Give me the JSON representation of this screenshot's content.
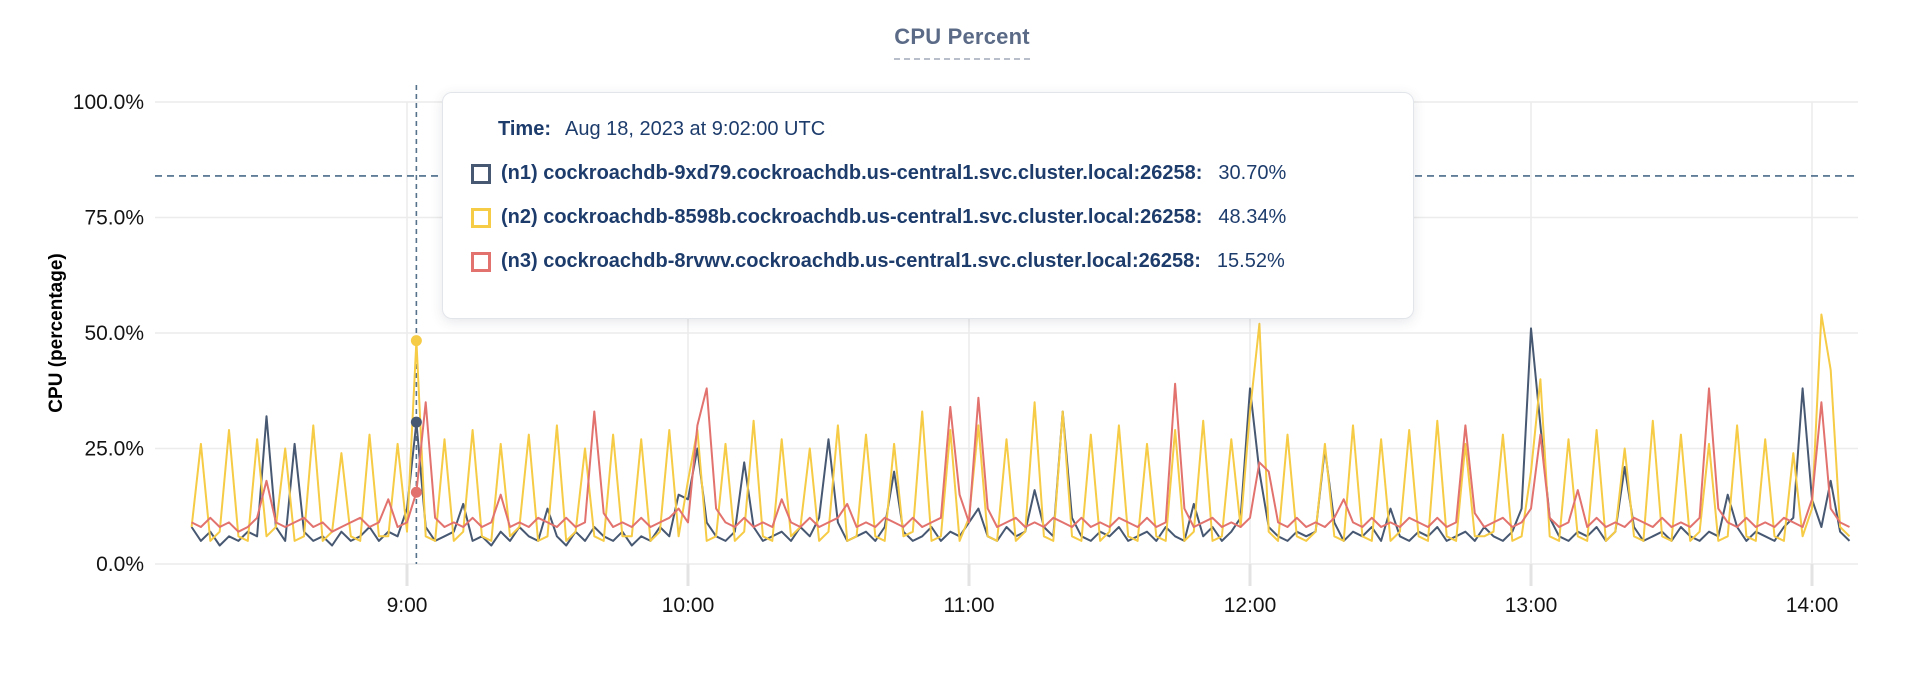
{
  "title": "CPU Percent",
  "tooltip": {
    "time_label": "Time:",
    "time_value": "Aug 18, 2023 at 9:02:00 UTC",
    "series": [
      {
        "label": "(n1) cockroachdb-9xd79.cockroachdb.us-central1.svc.cluster.local:26258:",
        "value": "30.70%"
      },
      {
        "label": "(n2) cockroachdb-8598b.cockroachdb.us-central1.svc.cluster.local:26258:",
        "value": "48.34%"
      },
      {
        "label": "(n3) cockroachdb-8rvwv.cockroachdb.us-central1.svc.cluster.local:26258:",
        "value": "15.52%"
      }
    ]
  },
  "colors": {
    "series_n1": "#475872",
    "series_n2": "#f6cb45",
    "series_n3": "#e2726e",
    "gridline": "#ececec",
    "threshold_dash": "#4a6b89",
    "hover_dash": "#56718a",
    "tooltip_text": "#1d3c6c",
    "axis_text": "#141414",
    "title_text": "#5b6b87"
  },
  "chart_data": {
    "type": "line",
    "title": "CPU Percent",
    "xlabel": "",
    "ylabel": "CPU (percentage)",
    "ylim": [
      0,
      100
    ],
    "grid": true,
    "legend_position": "tooltip-overlay",
    "y_ticks": [
      {
        "value": 0,
        "label": "0.0%"
      },
      {
        "value": 25,
        "label": "25.0%"
      },
      {
        "value": 50,
        "label": "50.0%"
      },
      {
        "value": 75,
        "label": "75.0%"
      },
      {
        "value": 100,
        "label": "100.0%"
      }
    ],
    "x_ticks": [
      {
        "minutes": 540,
        "label": "9:00"
      },
      {
        "minutes": 600,
        "label": "10:00"
      },
      {
        "minutes": 660,
        "label": "11:00"
      },
      {
        "minutes": 720,
        "label": "12:00"
      },
      {
        "minutes": 780,
        "label": "13:00"
      },
      {
        "minutes": 840,
        "label": "14:00"
      }
    ],
    "x_domain_minutes": [
      486,
      849
    ],
    "sample_start_minutes": 494,
    "sample_step_minutes": 2,
    "threshold_percent": 84,
    "hover": {
      "minutes": 542,
      "time": "Aug 18, 2023 at 9:02:00 UTC",
      "values": [
        30.7,
        48.34,
        15.52
      ]
    },
    "series": [
      {
        "id": "n1",
        "name": "cockroachdb-9xd79.cockroachdb.us-central1.svc.cluster.local:26258",
        "color": "#475872",
        "values": [
          8,
          5,
          7,
          4,
          6,
          5,
          7,
          6,
          32,
          8,
          5,
          26,
          7,
          5,
          6,
          4,
          7,
          5,
          6,
          8,
          5,
          7,
          6,
          12,
          30.7,
          8,
          5,
          6,
          7,
          13,
          5,
          6,
          4,
          7,
          5,
          8,
          6,
          5,
          12,
          6,
          4,
          7,
          5,
          8,
          6,
          5,
          7,
          4,
          6,
          5,
          8,
          6,
          15,
          14,
          25,
          9,
          6,
          5,
          7,
          22,
          8,
          5,
          6,
          7,
          5,
          8,
          6,
          10,
          27,
          9,
          5,
          6,
          7,
          5,
          8,
          20,
          7,
          5,
          6,
          8,
          5,
          7,
          6,
          9,
          12,
          6,
          5,
          8,
          6,
          7,
          16,
          8,
          6,
          33,
          10,
          6,
          5,
          7,
          6,
          8,
          5,
          6,
          7,
          5,
          8,
          6,
          5,
          13,
          6,
          8,
          5,
          7,
          10,
          38,
          20,
          8,
          6,
          5,
          7,
          6,
          7,
          25,
          9,
          5,
          7,
          6,
          8,
          5,
          12,
          6,
          5,
          7,
          6,
          8,
          5,
          6,
          7,
          5,
          8,
          6,
          5,
          7,
          12,
          51,
          30,
          10,
          6,
          5,
          7,
          6,
          8,
          5,
          7,
          21,
          8,
          5,
          6,
          7,
          5,
          8,
          6,
          5,
          7,
          6,
          15,
          8,
          5,
          7,
          6,
          5,
          8,
          10,
          38,
          14,
          8,
          18,
          7,
          5
        ]
      },
      {
        "id": "n2",
        "name": "cockroachdb-8598b.cockroachdb.us-central1.svc.cluster.local:26258",
        "color": "#f6cb45",
        "values": [
          8,
          26,
          5,
          7,
          29,
          6,
          5,
          27,
          6,
          8,
          25,
          5,
          6,
          30,
          5,
          7,
          24,
          6,
          5,
          28,
          6,
          6,
          26,
          7,
          48.34,
          6,
          5,
          27,
          5,
          7,
          29,
          6,
          5,
          26,
          6,
          8,
          28,
          5,
          6,
          30,
          5,
          7,
          25,
          6,
          5,
          28,
          6,
          6,
          27,
          5,
          7,
          29,
          6,
          18,
          29,
          5,
          6,
          26,
          5,
          7,
          31,
          6,
          5,
          27,
          6,
          8,
          25,
          5,
          7,
          30,
          5,
          6,
          28,
          6,
          5,
          26,
          6,
          7,
          33,
          5,
          6,
          29,
          5,
          10,
          30,
          6,
          5,
          27,
          5,
          7,
          35,
          6,
          5,
          33,
          6,
          5,
          28,
          5,
          7,
          30,
          6,
          5,
          26,
          6,
          5,
          29,
          5,
          7,
          31,
          5,
          6,
          27,
          8,
          33,
          52,
          7,
          5,
          28,
          6,
          5,
          7,
          26,
          6,
          5,
          30,
          6,
          5,
          27,
          5,
          7,
          29,
          6,
          5,
          31,
          6,
          5,
          26,
          6,
          6,
          7,
          28,
          5,
          6,
          20,
          40,
          6,
          5,
          27,
          6,
          5,
          29,
          5,
          7,
          25,
          6,
          5,
          31,
          6,
          5,
          28,
          5,
          7,
          26,
          5,
          6,
          30,
          6,
          5,
          27,
          6,
          5,
          24,
          6,
          12,
          54,
          42,
          8,
          6
        ]
      },
      {
        "id": "n3",
        "name": "cockroachdb-8rvwv.cockroachdb.us-central1.svc.cluster.local:26258",
        "color": "#e2726e",
        "values": [
          9,
          8,
          10,
          8,
          9,
          7,
          8,
          10,
          18,
          9,
          8,
          9,
          10,
          8,
          9,
          7,
          8,
          9,
          10,
          8,
          9,
          14,
          8,
          9,
          15.52,
          35,
          10,
          8,
          9,
          8,
          10,
          8,
          9,
          15,
          8,
          9,
          8,
          10,
          9,
          8,
          10,
          8,
          9,
          33,
          11,
          8,
          9,
          8,
          10,
          8,
          9,
          10,
          12,
          9,
          30,
          38,
          12,
          9,
          8,
          10,
          8,
          9,
          8,
          14,
          9,
          8,
          10,
          8,
          9,
          10,
          13,
          8,
          9,
          8,
          10,
          9,
          8,
          10,
          8,
          9,
          10,
          34,
          15,
          9,
          36,
          12,
          8,
          9,
          10,
          8,
          9,
          8,
          10,
          9,
          8,
          10,
          8,
          9,
          8,
          10,
          9,
          8,
          10,
          8,
          9,
          39,
          12,
          8,
          9,
          10,
          8,
          9,
          8,
          10,
          22,
          20,
          9,
          8,
          10,
          8,
          9,
          8,
          10,
          14,
          9,
          8,
          10,
          8,
          9,
          8,
          10,
          9,
          8,
          10,
          8,
          9,
          30,
          11,
          8,
          9,
          10,
          8,
          9,
          12,
          28,
          10,
          8,
          9,
          16,
          8,
          10,
          8,
          9,
          8,
          10,
          9,
          8,
          10,
          8,
          9,
          8,
          10,
          38,
          12,
          9,
          8,
          10,
          8,
          9,
          8,
          10,
          9,
          8,
          14,
          35,
          12,
          9,
          8
        ]
      }
    ]
  }
}
